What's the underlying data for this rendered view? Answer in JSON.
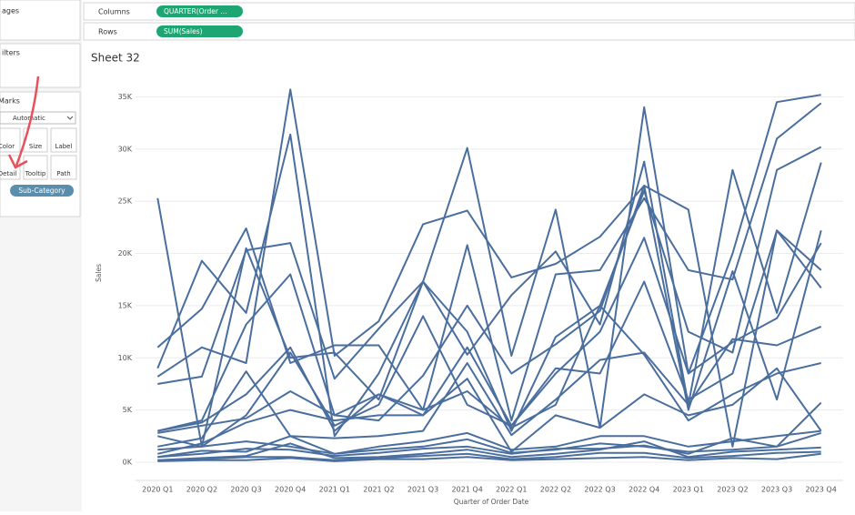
{
  "ui": {
    "pages": "ages",
    "filters": "ilters",
    "marks": "Marks",
    "mark_type": "Automatic",
    "buttons": [
      "Color",
      "Size",
      "Label",
      "Detail",
      "Tooltip",
      "Path"
    ],
    "detail_pill": "Sub-Category",
    "columns_label": "Columns",
    "columns_pill": "QUARTER(Order ...",
    "rows_label": "Rows",
    "rows_pill": "SUM(Sales)"
  },
  "chart_data": {
    "type": "line",
    "title": "Sheet 32",
    "x_label": "Quarter of Order Date",
    "y_label": "Sales",
    "categories": [
      "2020 Q1",
      "2020 Q2",
      "2020 Q3",
      "2020 Q4",
      "2021 Q1",
      "2021 Q2",
      "2021 Q3",
      "2021 Q4",
      "2022 Q1",
      "2022 Q2",
      "2022 Q3",
      "2022 Q4",
      "2023 Q1",
      "2023 Q2",
      "2023 Q3",
      "2023 Q4"
    ],
    "ylim": [
      0,
      36000
    ],
    "yticks": [
      {
        "value": 0,
        "label": "0K"
      },
      {
        "value": 5000,
        "label": "5K"
      },
      {
        "value": 10000,
        "label": "10K"
      },
      {
        "value": 15000,
        "label": "15K"
      },
      {
        "value": 20000,
        "label": "20K"
      },
      {
        "value": 25000,
        "label": "25K"
      },
      {
        "value": 30000,
        "label": "30K"
      },
      {
        "value": 35000,
        "label": "35K"
      }
    ],
    "grid": true,
    "series": [
      {
        "color": "#4a6e9e",
        "values": [
          25300,
          1500,
          20500,
          10000,
          10500,
          6000,
          17300,
          12500,
          3000,
          12000,
          15000,
          26000,
          12500,
          10500,
          28000,
          30200
        ]
      },
      {
        "color": "#4a6e9e",
        "values": [
          9000,
          19300,
          14300,
          31400,
          2500,
          8500,
          17300,
          30100,
          10200,
          24200,
          3300,
          34000,
          8500,
          20000,
          34500,
          35200
        ]
      },
      {
        "color": "#4a6e9e",
        "values": [
          11000,
          14700,
          22400,
          9500,
          11200,
          11200,
          5000,
          20800,
          4000,
          18000,
          18400,
          25300,
          18400,
          17500,
          31000,
          34400
        ]
      },
      {
        "color": "#4a6e9e",
        "values": [
          8200,
          11000,
          9500,
          35700,
          10200,
          13500,
          22800,
          24100,
          17700,
          19000,
          21600,
          26500,
          24200,
          1500,
          22200,
          18400
        ]
      },
      {
        "color": "#4a6e9e",
        "values": [
          7500,
          8200,
          20300,
          21000,
          8000,
          12800,
          17300,
          10300,
          16000,
          20200,
          13200,
          28800,
          5500,
          28000,
          14300,
          28700
        ]
      },
      {
        "color": "#4a6e9e",
        "values": [
          3000,
          4000,
          13200,
          18000,
          4500,
          4000,
          8300,
          15000,
          8500,
          11300,
          14500,
          26500,
          5000,
          18300,
          6000,
          22200
        ]
      },
      {
        "color": "#4a6e9e",
        "values": [
          2500,
          1500,
          4500,
          10500,
          3500,
          5500,
          14000,
          5500,
          3500,
          8500,
          12500,
          21500,
          8500,
          11500,
          13800,
          21000
        ]
      },
      {
        "color": "#4a6e9e",
        "values": [
          3000,
          3800,
          6500,
          11000,
          3000,
          6500,
          4500,
          11000,
          3500,
          9000,
          8500,
          17300,
          6000,
          8500,
          22200,
          16700
        ]
      },
      {
        "color": "#4a6e9e",
        "values": [
          1500,
          2300,
          8700,
          2500,
          2300,
          2500,
          3000,
          9500,
          2600,
          6000,
          9800,
          10500,
          5500,
          11800,
          11200,
          13000
        ]
      },
      {
        "color": "#4a6e9e",
        "values": [
          2800,
          3500,
          4200,
          6800,
          4500,
          6500,
          5000,
          6800,
          3300,
          5500,
          15000,
          10300,
          4000,
          6500,
          8500,
          9500
        ]
      },
      {
        "color": "#4a6e9e",
        "values": [
          800,
          1800,
          3800,
          5000,
          4000,
          4500,
          4500,
          8000,
          1000,
          4500,
          3300,
          6500,
          4500,
          5500,
          9000,
          3000
        ]
      },
      {
        "color": "#4a6e9e",
        "values": [
          500,
          1100,
          1000,
          2500,
          800,
          1200,
          1500,
          2200,
          900,
          1200,
          1800,
          1500,
          1000,
          1200,
          1500,
          5700
        ]
      },
      {
        "color": "#4a6e9e",
        "values": [
          500,
          800,
          1300,
          1200,
          600,
          900,
          1300,
          1500,
          800,
          1300,
          1300,
          1600,
          800,
          2300,
          1500,
          2800
        ]
      },
      {
        "color": "#4a6e9e",
        "values": [
          200,
          400,
          600,
          1800,
          400,
          500,
          800,
          1200,
          500,
          800,
          1200,
          2000,
          500,
          1000,
          1200,
          1400
        ]
      },
      {
        "color": "#4a6e9e",
        "values": [
          100,
          200,
          200,
          400,
          100,
          300,
          300,
          500,
          200,
          300,
          400,
          500,
          200,
          400,
          300,
          800
        ]
      },
      {
        "color": "#4a6e9e",
        "values": [
          200,
          300,
          500,
          500,
          200,
          400,
          600,
          800,
          300,
          500,
          900,
          900,
          400,
          600,
          900,
          1000
        ]
      },
      {
        "color": "#4a6e9e",
        "values": [
          1200,
          1500,
          2000,
          1500,
          800,
          1500,
          2000,
          2800,
          1200,
          1500,
          2500,
          2500,
          1500,
          2000,
          2500,
          3000
        ]
      }
    ]
  }
}
